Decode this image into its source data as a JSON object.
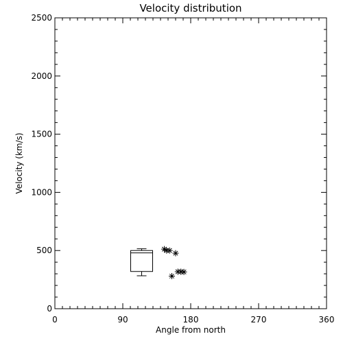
{
  "chart_data": {
    "type": "scatter",
    "title": "Velocity distribution",
    "xlabel": "Angle from north",
    "ylabel": "Velocity (km/s)",
    "xlim": [
      0,
      360
    ],
    "ylim": [
      0,
      2500
    ],
    "x_ticks": [
      0,
      90,
      180,
      270,
      360
    ],
    "y_ticks": [
      0,
      500,
      1000,
      1500,
      2000,
      2500
    ],
    "grid": false,
    "box": {
      "x": 115,
      "whisker_low": 283,
      "q1": 320,
      "median": 480,
      "q3": 500,
      "whisker_high": 515
    },
    "points": [
      {
        "x": 145,
        "y": 512
      },
      {
        "x": 148,
        "y": 500
      },
      {
        "x": 152,
        "y": 500
      },
      {
        "x": 160,
        "y": 477
      },
      {
        "x": 155,
        "y": 280
      },
      {
        "x": 163,
        "y": 318
      },
      {
        "x": 167,
        "y": 318
      },
      {
        "x": 171,
        "y": 316
      }
    ],
    "marker_color": "#000000"
  }
}
